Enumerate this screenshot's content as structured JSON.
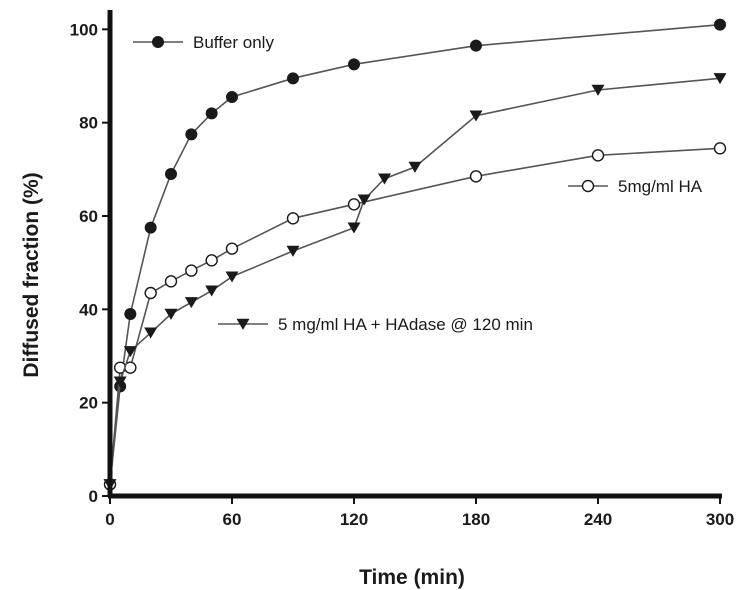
{
  "chart_data": {
    "type": "line",
    "title": "",
    "xlabel": "Time (min)",
    "ylabel": "Diffused fraction (%)",
    "xlim": [
      0,
      300
    ],
    "ylim": [
      0,
      102
    ],
    "xticks": [
      0,
      60,
      120,
      180,
      240,
      300
    ],
    "yticks": [
      0,
      20,
      40,
      60,
      80,
      100
    ],
    "grid": false,
    "colors": {
      "line": "#555555",
      "marker": "#1a1a1a",
      "axis": "#111111"
    },
    "series": [
      {
        "name": "Buffer only",
        "marker": "filled-circle",
        "x": [
          0,
          5,
          10,
          20,
          30,
          40,
          50,
          60,
          90,
          120,
          180,
          300
        ],
        "y": [
          2.5,
          23.5,
          39,
          57.5,
          69,
          77.5,
          82,
          85.5,
          89.5,
          92.5,
          96.5,
          101
        ]
      },
      {
        "name": "5mg/ml HA",
        "marker": "open-circle",
        "x": [
          0,
          5,
          10,
          20,
          30,
          40,
          50,
          60,
          90,
          120,
          180,
          240,
          300
        ],
        "y": [
          2.5,
          27.5,
          27.5,
          43.5,
          46,
          48.3,
          50.5,
          53,
          59.5,
          62.5,
          68.5,
          73,
          74.5
        ]
      },
      {
        "name": "5 mg/ml HA + HAdase @ 120 min",
        "marker": "filled-triangle-down",
        "x": [
          0,
          5,
          10,
          20,
          30,
          40,
          50,
          60,
          90,
          120,
          125,
          135,
          150,
          180,
          240,
          300
        ],
        "y": [
          2.5,
          24.5,
          31,
          35,
          39,
          41.5,
          44,
          47,
          52.5,
          57.5,
          63.5,
          68,
          70.5,
          81.5,
          87,
          89.5
        ]
      }
    ]
  }
}
